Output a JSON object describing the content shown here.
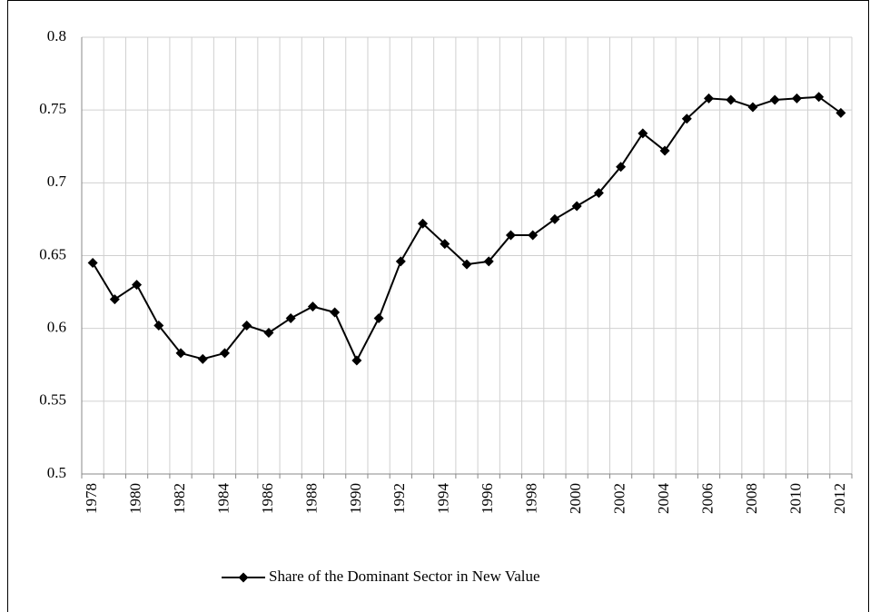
{
  "chart_data": {
    "type": "line",
    "categories": [
      "1978",
      null,
      "1980",
      null,
      "1982",
      null,
      "1984",
      null,
      "1986",
      null,
      "1988",
      null,
      "1990",
      null,
      "1992",
      null,
      "1994",
      null,
      "1996",
      null,
      "1998",
      null,
      "2000",
      null,
      "2002",
      null,
      "2004",
      null,
      "2006",
      null,
      "2008",
      null,
      "2010",
      null,
      "2012"
    ],
    "series": [
      {
        "name": "Share of the Dominant Sector in New Value",
        "color": "#000000",
        "values": [
          0.645,
          0.62,
          0.63,
          0.602,
          0.583,
          0.579,
          0.583,
          0.602,
          0.597,
          0.607,
          0.615,
          0.611,
          0.578,
          0.607,
          0.646,
          0.672,
          0.658,
          0.644,
          0.646,
          0.664,
          0.664,
          0.675,
          0.684,
          0.693,
          0.711,
          0.734,
          0.722,
          0.744,
          0.758,
          0.757,
          0.752,
          0.757,
          0.758,
          0.759,
          0.748
        ]
      }
    ],
    "ylim": [
      0.5,
      0.8
    ],
    "yticks": [
      0.5,
      0.55,
      0.6,
      0.65,
      0.7,
      0.75,
      0.8
    ],
    "grid": true,
    "legend": "bottom"
  }
}
